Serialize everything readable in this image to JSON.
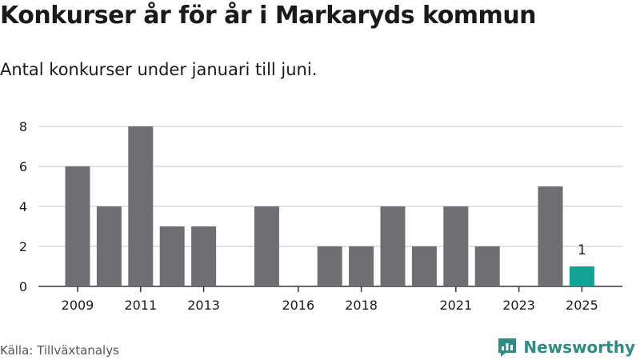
{
  "header": {
    "title": "Konkurser år för år i Markaryds kommun",
    "subtitle": "Antal konkurser under januari till juni."
  },
  "footer": {
    "source": "Källa: Tillväxtanalys",
    "brand": "Newsworthy"
  },
  "colors": {
    "bar": "#6f6e73",
    "highlight": "#13a395",
    "grid": "#d9d9d9",
    "axis": "#333333",
    "brand": "#2e8c83"
  },
  "icons": {
    "brand_logo": "newsworthy-bar-chart-speech-icon"
  },
  "chart_data": {
    "type": "bar",
    "title": "Konkurser år för år i Markaryds kommun",
    "subtitle": "Antal konkurser under januari till juni.",
    "xlabel": "",
    "ylabel": "",
    "categories": [
      "2009",
      "2010",
      "2011",
      "2012",
      "2013",
      "2014",
      "2015",
      "2016",
      "2017",
      "2018",
      "2019",
      "2020",
      "2021",
      "2022",
      "2023",
      "2024",
      "2025"
    ],
    "values": [
      6,
      4,
      8,
      3,
      3,
      0,
      4,
      0,
      2,
      2,
      4,
      2,
      4,
      2,
      0,
      5,
      1
    ],
    "x_tick_labels": [
      "2009",
      "2011",
      "2013",
      "2016",
      "2018",
      "2021",
      "2023",
      "2025"
    ],
    "y_ticks": [
      0,
      2,
      4,
      6,
      8
    ],
    "ylim": [
      0,
      8
    ],
    "grid": true,
    "highlight_category": "2025",
    "data_labels": [
      {
        "category": "2025",
        "text": "1"
      }
    ]
  }
}
